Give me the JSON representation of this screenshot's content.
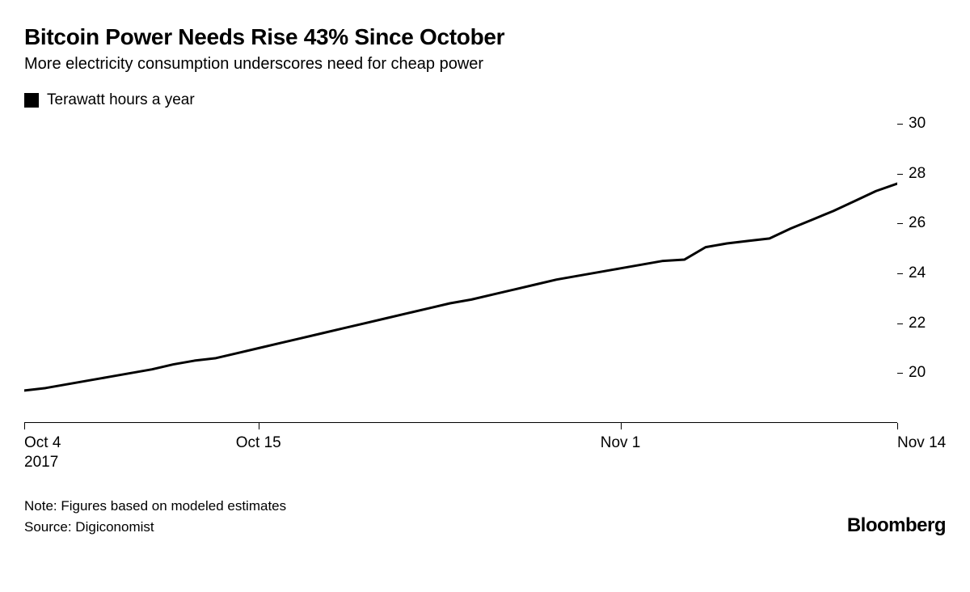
{
  "header": {
    "title": "Bitcoin Power Needs Rise 43% Since October",
    "subtitle": "More electricity consumption underscores need for cheap power"
  },
  "legend": {
    "label": "Terawatt hours a year",
    "swatch_color": "#000000"
  },
  "chart": {
    "type": "line",
    "background_color": "#ffffff",
    "axis_color": "#000000",
    "line_color": "#000000",
    "line_width": 3,
    "tick_fontsize": 19,
    "x_axis": {
      "min_index": 0,
      "max_index": 41,
      "ticks": [
        {
          "index": 0,
          "label": "Oct 4",
          "year": "2017",
          "anchor": "start"
        },
        {
          "index": 11,
          "label": "Oct 15",
          "anchor": "middle"
        },
        {
          "index": 28,
          "label": "Nov 1",
          "anchor": "middle"
        },
        {
          "index": 41,
          "label": "Nov 14",
          "anchor": "end"
        }
      ]
    },
    "y_axis": {
      "min": 18,
      "max": 30,
      "ticks": [
        20,
        22,
        24,
        26,
        28,
        30
      ]
    },
    "series": {
      "values": [
        19.3,
        19.4,
        19.55,
        19.7,
        19.85,
        20.0,
        20.15,
        20.35,
        20.5,
        20.6,
        20.8,
        21.0,
        21.2,
        21.4,
        21.6,
        21.8,
        22.0,
        22.2,
        22.4,
        22.6,
        22.8,
        22.95,
        23.15,
        23.35,
        23.55,
        23.75,
        23.9,
        24.05,
        24.2,
        24.35,
        24.5,
        24.55,
        25.05,
        25.2,
        25.3,
        25.4,
        25.8,
        26.15,
        26.5,
        26.9,
        27.3,
        27.6
      ]
    }
  },
  "footer": {
    "note": "Note: Figures based on modeled estimates",
    "source": "Source: Digiconomist",
    "brand": "Bloomberg"
  }
}
